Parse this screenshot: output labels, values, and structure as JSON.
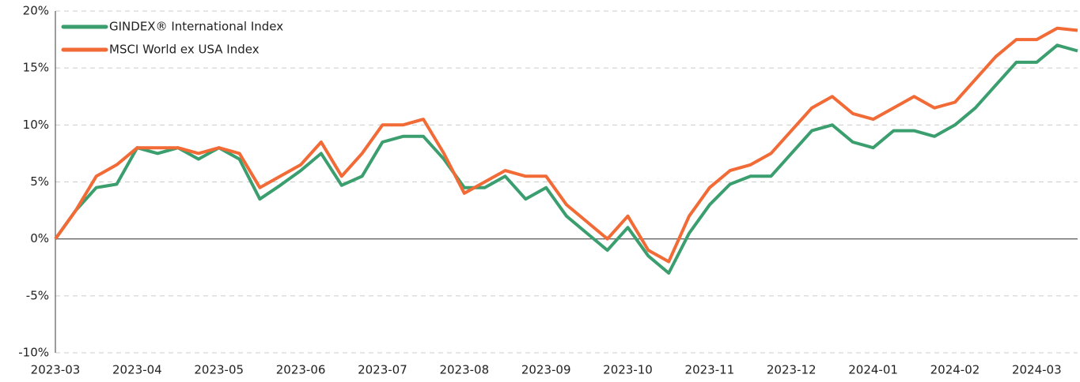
{
  "chart_data": {
    "type": "line",
    "categories": [
      "2023-03",
      null,
      null,
      null,
      "2023-04",
      null,
      null,
      null,
      "2023-05",
      null,
      null,
      null,
      "2023-06",
      null,
      null,
      null,
      "2023-07",
      null,
      null,
      null,
      "2023-08",
      null,
      null,
      null,
      "2023-09",
      null,
      null,
      null,
      "2023-10",
      null,
      null,
      null,
      "2023-11",
      null,
      null,
      null,
      "2023-12",
      null,
      null,
      null,
      "2024-01",
      null,
      null,
      null,
      "2024-02",
      null,
      null,
      null,
      "2024-03",
      null,
      null
    ],
    "series": [
      {
        "name": "GINDEX® International Index",
        "color": "#3a9e6e",
        "values": [
          0,
          2.5,
          4.5,
          4.8,
          8,
          7.5,
          8,
          7,
          8,
          7,
          3.5,
          4.7,
          6,
          7.5,
          4.7,
          5.5,
          8.5,
          9,
          9,
          7,
          4.5,
          4.5,
          5.5,
          3.5,
          4.5,
          2,
          0.5,
          -1,
          1,
          -1.5,
          -3,
          0.5,
          3,
          4.8,
          5.5,
          5.5,
          7.5,
          9.5,
          10,
          8.5,
          8,
          9.5,
          9.5,
          9,
          10,
          11.5,
          13.5,
          15.5,
          15.5,
          17,
          16.5
        ]
      },
      {
        "name": "MSCI World ex USA Index",
        "color": "#f26a35",
        "values": [
          0,
          2.5,
          5.5,
          6.5,
          8,
          8,
          8,
          7.5,
          8,
          7.5,
          4.5,
          5.5,
          6.5,
          8.5,
          5.5,
          7.5,
          10,
          10,
          10.5,
          7.5,
          4,
          5,
          6,
          5.5,
          5.5,
          3,
          1.5,
          0,
          2,
          -1,
          -2,
          2,
          4.5,
          6,
          6.5,
          7.5,
          9.5,
          11.5,
          12.5,
          11,
          10.5,
          11.5,
          12.5,
          11.5,
          12,
          14,
          16,
          17.5,
          17.5,
          18.5,
          18.3
        ]
      }
    ],
    "ylim": [
      -10,
      20
    ],
    "yticks": [
      {
        "value": -10,
        "label": "-10%"
      },
      {
        "value": -5,
        "label": "-5%"
      },
      {
        "value": 0,
        "label": "0%"
      },
      {
        "value": 5,
        "label": "5%"
      },
      {
        "value": 10,
        "label": "10%"
      },
      {
        "value": 15,
        "label": "15%"
      },
      {
        "value": 20,
        "label": "20%"
      }
    ],
    "grid": true,
    "legend": "upper left"
  }
}
